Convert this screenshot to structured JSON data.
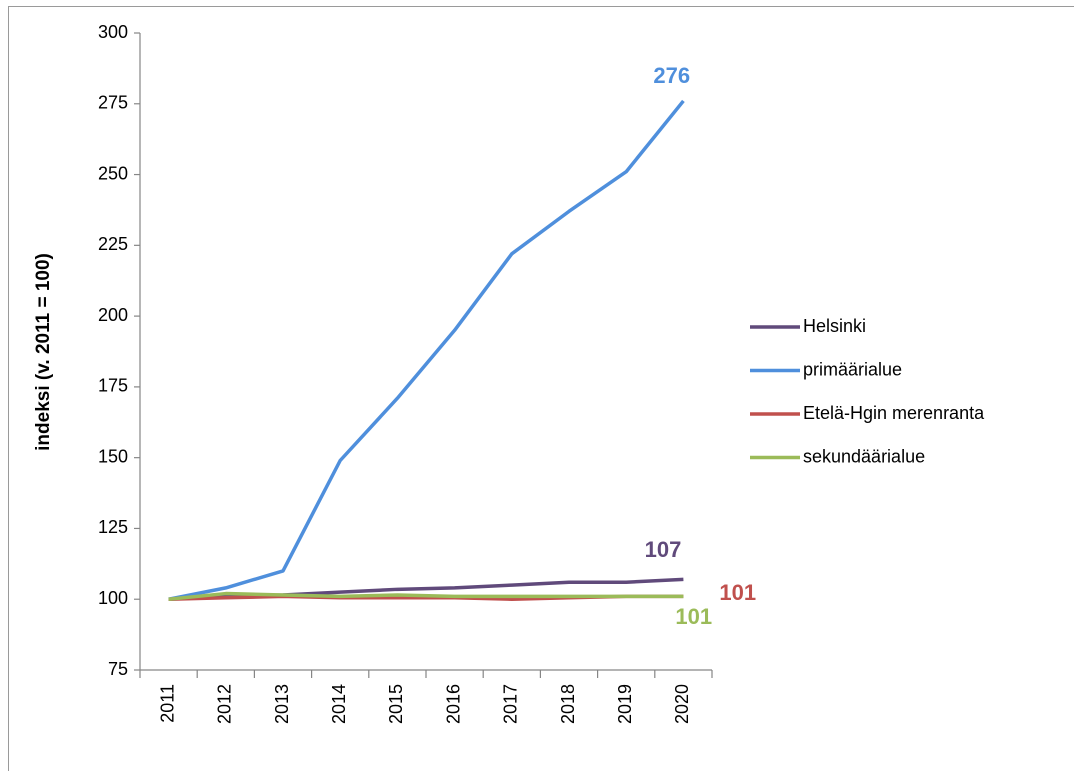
{
  "chart_data": {
    "type": "line",
    "y_label": "indeksi (v. 2011 = 100)",
    "categories": [
      "2011",
      "2012",
      "2013",
      "2014",
      "2015",
      "2016",
      "2017",
      "2018",
      "2019",
      "2020"
    ],
    "series": [
      {
        "name": "Helsinki",
        "color": "#604a7b",
        "values": [
          100,
          101,
          101.5,
          102.5,
          103.5,
          104,
          105,
          106,
          106,
          107
        ]
      },
      {
        "name": "primäärialue",
        "color": "#4f8fdc",
        "values": [
          100,
          104,
          110,
          149,
          171,
          195,
          222,
          237,
          251,
          276
        ]
      },
      {
        "name": "Etelä-Hgin merenranta",
        "color": "#c0504d",
        "values": [
          100,
          100.5,
          101,
          100.5,
          100.5,
          100.5,
          100,
          100.5,
          101,
          101
        ]
      },
      {
        "name": "sekundäärialue",
        "color": "#9bbb59",
        "values": [
          100,
          102,
          101.5,
          101,
          101.5,
          101,
          101,
          101,
          101,
          101
        ]
      }
    ],
    "ylim": [
      75,
      300
    ],
    "yticks": [
      75,
      100,
      125,
      150,
      175,
      200,
      225,
      250,
      275,
      300
    ],
    "grid": false,
    "legend": "right"
  }
}
